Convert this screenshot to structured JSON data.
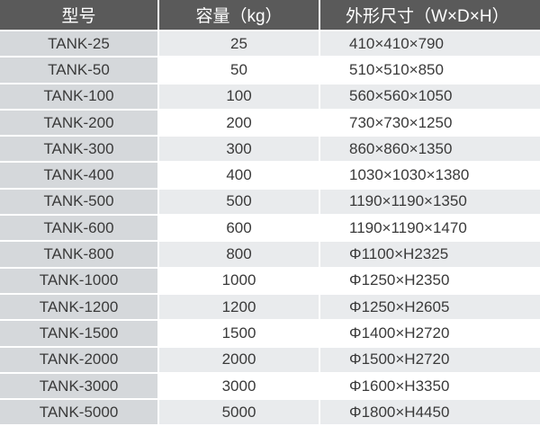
{
  "headers": [
    "型号",
    "容量（kg）",
    "外形尺寸（W×D×H）"
  ],
  "colors": {
    "header_bg": "#5a5a5a",
    "model_col_bg": "#d5d8db",
    "stripe_bg": "#e9ebed"
  },
  "rows": [
    {
      "model": "TANK-25",
      "capacity": "25",
      "size": "410×410×790"
    },
    {
      "model": "TANK-50",
      "capacity": "50",
      "size": "510×510×850"
    },
    {
      "model": "TANK-100",
      "capacity": "100",
      "size": "560×560×1050"
    },
    {
      "model": "TANK-200",
      "capacity": "200",
      "size": "730×730×1250"
    },
    {
      "model": "TANK-300",
      "capacity": "300",
      "size": "860×860×1350"
    },
    {
      "model": "TANK-400",
      "capacity": "400",
      "size": "1030×1030×1380"
    },
    {
      "model": "TANK-500",
      "capacity": "500",
      "size": "1190×1190×1350"
    },
    {
      "model": "TANK-600",
      "capacity": "600",
      "size": "1190×1190×1470"
    },
    {
      "model": "TANK-800",
      "capacity": "800",
      "size": "Φ1100×H2325"
    },
    {
      "model": "TANK-1000",
      "capacity": "1000",
      "size": "Φ1250×H2350"
    },
    {
      "model": "TANK-1200",
      "capacity": "1200",
      "size": "Φ1250×H2605"
    },
    {
      "model": "TANK-1500",
      "capacity": "1500",
      "size": "Φ1400×H2720"
    },
    {
      "model": "TANK-2000",
      "capacity": "2000",
      "size": "Φ1500×H2720"
    },
    {
      "model": "TANK-3000",
      "capacity": "3000",
      "size": "Φ1600×H3350"
    },
    {
      "model": "TANK-5000",
      "capacity": "5000",
      "size": "Φ1800×H4450"
    }
  ]
}
